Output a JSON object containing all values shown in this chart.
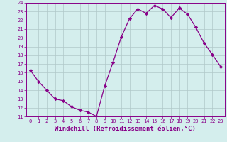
{
  "x": [
    0,
    1,
    2,
    3,
    4,
    5,
    6,
    7,
    8,
    9,
    10,
    11,
    12,
    13,
    14,
    15,
    16,
    17,
    18,
    19,
    20,
    21,
    22,
    23
  ],
  "y": [
    16.3,
    15.0,
    14.0,
    13.0,
    12.8,
    12.1,
    11.7,
    11.5,
    11.0,
    14.5,
    17.2,
    20.1,
    22.2,
    23.3,
    22.8,
    23.7,
    23.3,
    22.3,
    23.4,
    22.7,
    21.2,
    19.4,
    18.1,
    16.7
  ],
  "line_color": "#880088",
  "marker": "D",
  "marker_size": 2.2,
  "bg_color": "#d4eeed",
  "grid_color": "#b0c8c8",
  "xlabel": "Windchill (Refroidissement éolien,°C)",
  "xlabel_color": "#880088",
  "ylim": [
    11,
    24
  ],
  "xlim": [
    -0.5,
    23.5
  ],
  "yticks": [
    11,
    12,
    13,
    14,
    15,
    16,
    17,
    18,
    19,
    20,
    21,
    22,
    23,
    24
  ],
  "xticks": [
    0,
    1,
    2,
    3,
    4,
    5,
    6,
    7,
    8,
    9,
    10,
    11,
    12,
    13,
    14,
    15,
    16,
    17,
    18,
    19,
    20,
    21,
    22,
    23
  ],
  "tick_color": "#880088",
  "tick_labelsize": 5.0,
  "xlabel_fontsize": 6.5,
  "linewidth": 0.9
}
